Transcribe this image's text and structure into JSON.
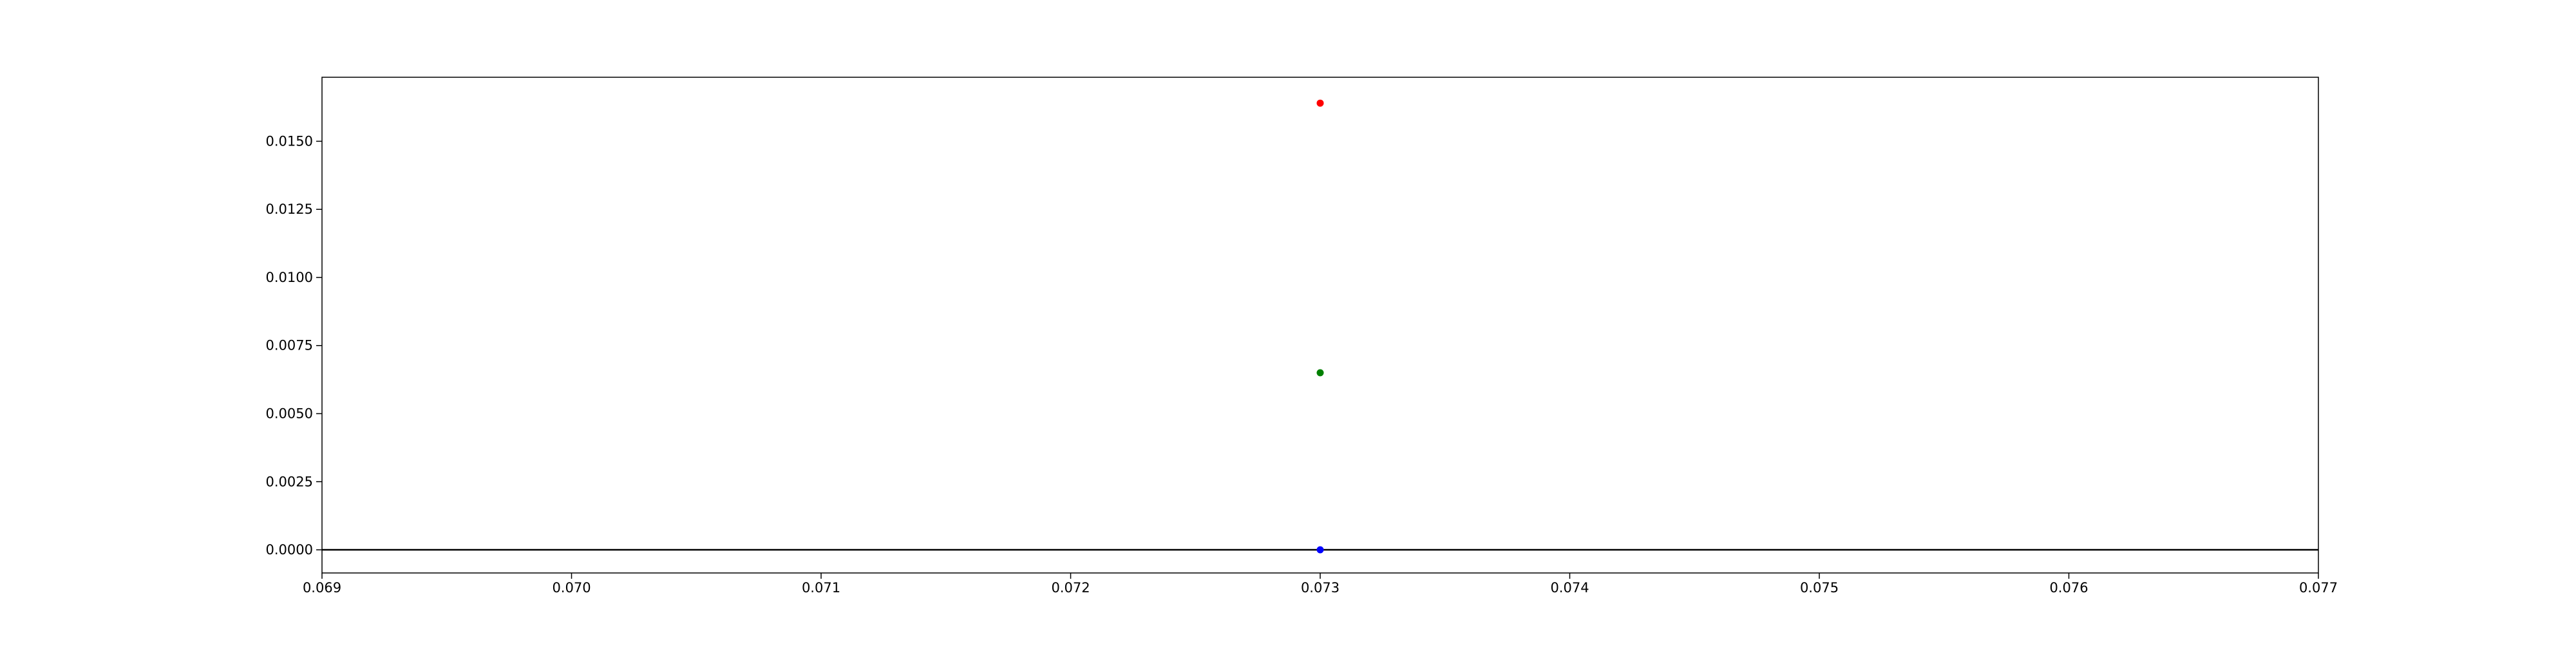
{
  "chart_data": {
    "type": "scatter",
    "title": "",
    "xlabel": "",
    "ylabel": "",
    "xlim": [
      0.069,
      0.077
    ],
    "ylim": [
      -0.00085,
      0.01735
    ],
    "x_ticks": [
      "0.069",
      "0.070",
      "0.071",
      "0.072",
      "0.073",
      "0.074",
      "0.075",
      "0.076",
      "0.077"
    ],
    "y_ticks": [
      "0.0000",
      "0.0025",
      "0.0050",
      "0.0075",
      "0.0100",
      "0.0125",
      "0.0150"
    ],
    "grid": false,
    "legend": "none",
    "hline_y": 0.0,
    "hline_color": "#000000",
    "points": [
      {
        "x": 0.073,
        "y": 0.0164,
        "color": "#ff0000"
      },
      {
        "x": 0.073,
        "y": 0.0065,
        "color": "#008000"
      },
      {
        "x": 0.073,
        "y": 0.0,
        "color": "#0000ff"
      }
    ]
  }
}
